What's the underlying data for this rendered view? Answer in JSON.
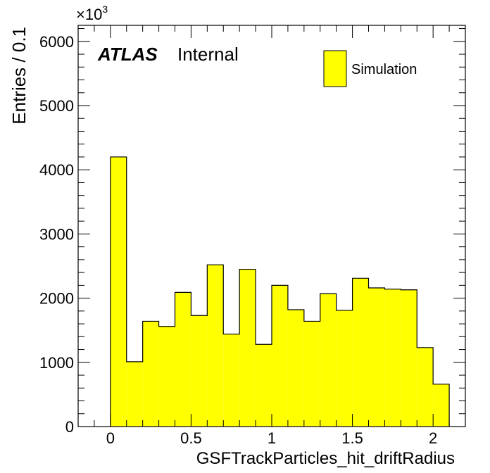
{
  "chart_data": {
    "type": "bar",
    "xlabel": "GSFTrackParticles_hit_driftRadius",
    "ylabel": "Entries / 0.1",
    "y_multiplier_label": "×10",
    "y_multiplier_exp": "3",
    "xlim": [
      -0.2,
      2.2
    ],
    "ylim": [
      0,
      6250
    ],
    "x_ticks": [
      0,
      0.5,
      1,
      1.5,
      2
    ],
    "x_tick_labels": [
      "0",
      "0.5",
      "1",
      "1.5",
      "2"
    ],
    "y_ticks": [
      0,
      1000,
      2000,
      3000,
      4000,
      5000,
      6000
    ],
    "y_tick_labels": [
      "0",
      "1000",
      "2000",
      "3000",
      "4000",
      "5000",
      "6000"
    ],
    "bin_width": 0.1,
    "bin_low_edges": [
      0,
      0.1,
      0.2,
      0.3,
      0.4,
      0.5,
      0.6,
      0.7,
      0.8,
      0.9,
      1.0,
      1.1,
      1.2,
      1.3,
      1.4,
      1.5,
      1.6,
      1.7,
      1.8,
      1.9,
      2.0
    ],
    "values": [
      4200,
      1010,
      1640,
      1560,
      2090,
      1730,
      2520,
      1440,
      2450,
      1280,
      2200,
      1820,
      1640,
      2070,
      1810,
      2310,
      2160,
      2140,
      2130,
      1230,
      660
    ],
    "fill_color": "#ffff00",
    "line_color": "#000000",
    "atlas_label": "ATLAS",
    "atlas_status": "Internal",
    "legend": {
      "label": "Simulation",
      "placement": "top-right"
    },
    "grid": false
  }
}
